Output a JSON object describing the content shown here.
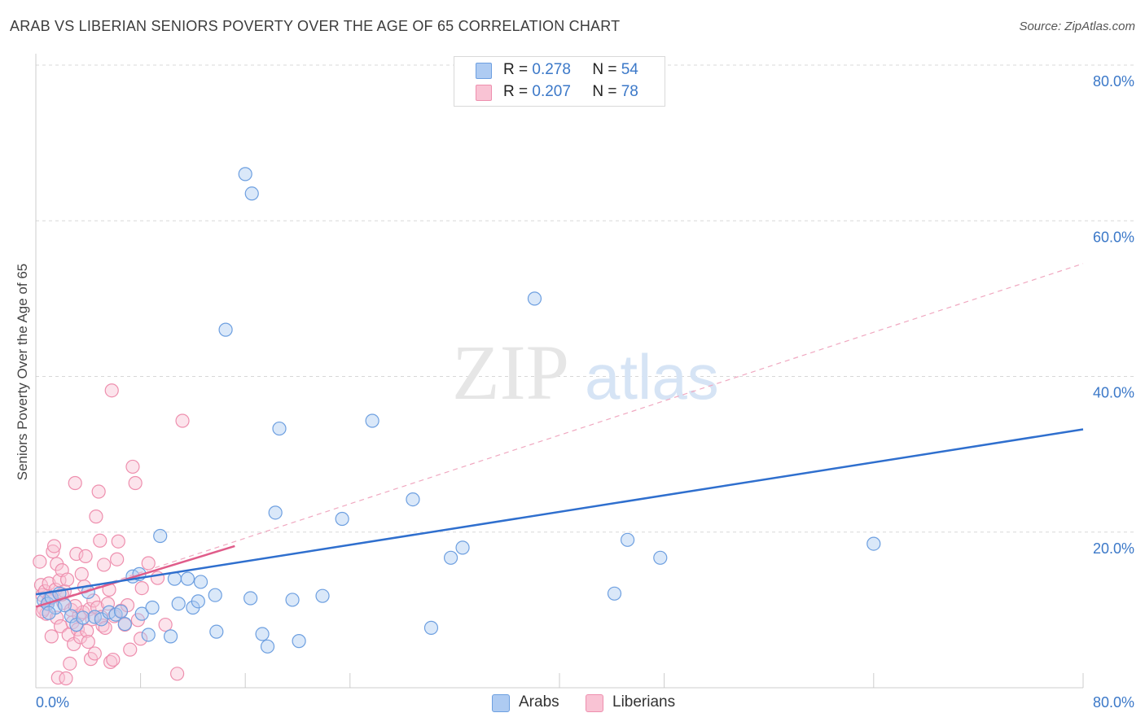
{
  "title": "ARAB VS LIBERIAN SENIORS POVERTY OVER THE AGE OF 65 CORRELATION CHART",
  "source": "Source: ZipAtlas.com",
  "watermark": {
    "zip": "ZIP",
    "atlas": "atlas"
  },
  "colors": {
    "arab_fill": "#aecbf2",
    "arab_stroke": "#6d9fe0",
    "arab_line": "#2f6fce",
    "liberian_fill": "#f9c3d4",
    "liberian_stroke": "#ee8fae",
    "liberian_line": "#e05c8a",
    "tick": "#3b78c8",
    "grid": "#d8d8d8"
  },
  "legend": {
    "rows": [
      {
        "r_label": "R =",
        "r_value": "0.278",
        "n_label": "N =",
        "n_value": "54",
        "series": "Arabs"
      },
      {
        "r_label": "R =",
        "r_value": "0.207",
        "n_label": "N =",
        "n_value": "78",
        "series": "Liberians"
      }
    ]
  },
  "bottom_legend": [
    "Arabs",
    "Liberians"
  ],
  "chart_data": {
    "type": "scatter",
    "xlabel": "",
    "ylabel": "Seniors Poverty Over the Age of 65",
    "xlim": [
      0,
      80
    ],
    "ylim": [
      0,
      80
    ],
    "x_tick_labels": [
      "0.0%",
      "80.0%"
    ],
    "y_tick_labels": [
      "20.0%",
      "40.0%",
      "60.0%",
      "80.0%"
    ],
    "y_ticks": [
      20,
      40,
      60,
      80
    ],
    "grid": true,
    "legend_position": "top-center",
    "series": [
      {
        "name": "Arabs",
        "trend": {
          "x": [
            0,
            80
          ],
          "y": [
            12.0,
            33.2
          ],
          "style": "solid"
        },
        "points": [
          [
            0.6,
            11.2
          ],
          [
            0.9,
            10.8
          ],
          [
            1.2,
            11.6
          ],
          [
            1.5,
            10.3
          ],
          [
            1.8,
            12.1
          ],
          [
            2.2,
            10.6
          ],
          [
            2.7,
            9.2
          ],
          [
            3.1,
            8.1
          ],
          [
            3.6,
            9.0
          ],
          [
            4.0,
            12.3
          ],
          [
            4.5,
            9.1
          ],
          [
            5.0,
            8.8
          ],
          [
            5.6,
            9.7
          ],
          [
            6.1,
            9.4
          ],
          [
            6.5,
            9.8
          ],
          [
            6.8,
            8.2
          ],
          [
            7.4,
            14.3
          ],
          [
            7.9,
            14.6
          ],
          [
            8.1,
            9.5
          ],
          [
            8.6,
            6.8
          ],
          [
            8.9,
            10.3
          ],
          [
            9.5,
            19.5
          ],
          [
            10.3,
            6.6
          ],
          [
            10.6,
            14.0
          ],
          [
            10.9,
            10.8
          ],
          [
            11.6,
            14.0
          ],
          [
            12.0,
            10.3
          ],
          [
            12.4,
            11.1
          ],
          [
            12.6,
            13.6
          ],
          [
            13.7,
            11.9
          ],
          [
            13.8,
            7.2
          ],
          [
            16.0,
            66.0
          ],
          [
            16.5,
            63.5
          ],
          [
            16.4,
            11.5
          ],
          [
            14.5,
            46.0
          ],
          [
            17.3,
            6.9
          ],
          [
            17.7,
            5.3
          ],
          [
            18.3,
            22.5
          ],
          [
            18.6,
            33.3
          ],
          [
            19.6,
            11.3
          ],
          [
            20.1,
            6.0
          ],
          [
            21.9,
            11.8
          ],
          [
            23.4,
            21.7
          ],
          [
            25.7,
            34.3
          ],
          [
            28.8,
            24.2
          ],
          [
            30.2,
            7.7
          ],
          [
            31.7,
            16.7
          ],
          [
            32.6,
            18.0
          ],
          [
            38.1,
            50.0
          ],
          [
            44.2,
            12.1
          ],
          [
            45.2,
            19.0
          ],
          [
            47.7,
            16.7
          ],
          [
            64.0,
            18.5
          ],
          [
            1.0,
            9.6
          ]
        ]
      },
      {
        "name": "Liberians",
        "trend_solid": {
          "x": [
            0,
            15.2
          ],
          "y": [
            10.4,
            18.2
          ],
          "style": "solid"
        },
        "trend_dashed": {
          "x": [
            0,
            80
          ],
          "y": [
            10.4,
            54.5
          ],
          "style": "dashed"
        },
        "points": [
          [
            0.3,
            16.2
          ],
          [
            0.4,
            13.2
          ],
          [
            0.5,
            11.9
          ],
          [
            0.6,
            10.1
          ],
          [
            0.7,
            12.4
          ],
          [
            0.8,
            9.5
          ],
          [
            0.9,
            10.8
          ],
          [
            1.0,
            13.4
          ],
          [
            1.1,
            11.5
          ],
          [
            1.2,
            6.6
          ],
          [
            1.3,
            17.5
          ],
          [
            1.4,
            18.2
          ],
          [
            1.5,
            12.6
          ],
          [
            1.6,
            15.9
          ],
          [
            1.6,
            9.0
          ],
          [
            1.7,
            1.3
          ],
          [
            1.8,
            13.8
          ],
          [
            1.9,
            7.9
          ],
          [
            2.0,
            15.1
          ],
          [
            2.1,
            10.9
          ],
          [
            2.2,
            12.4
          ],
          [
            2.3,
            1.2
          ],
          [
            2.4,
            13.9
          ],
          [
            2.5,
            6.8
          ],
          [
            2.6,
            3.1
          ],
          [
            2.7,
            10.0
          ],
          [
            2.8,
            8.4
          ],
          [
            2.9,
            5.6
          ],
          [
            3.0,
            26.3
          ],
          [
            3.1,
            17.2
          ],
          [
            3.2,
            7.5
          ],
          [
            3.3,
            9.3
          ],
          [
            3.4,
            6.5
          ],
          [
            3.5,
            14.6
          ],
          [
            3.6,
            9.7
          ],
          [
            3.7,
            13.0
          ],
          [
            3.8,
            16.9
          ],
          [
            3.9,
            7.3
          ],
          [
            4.0,
            5.9
          ],
          [
            4.1,
            10.1
          ],
          [
            4.2,
            3.7
          ],
          [
            4.3,
            8.8
          ],
          [
            4.4,
            11.2
          ],
          [
            4.5,
            4.4
          ],
          [
            4.6,
            22.0
          ],
          [
            4.7,
            10.3
          ],
          [
            4.8,
            25.2
          ],
          [
            4.9,
            18.9
          ],
          [
            5.0,
            9.1
          ],
          [
            5.1,
            8.0
          ],
          [
            5.2,
            15.8
          ],
          [
            5.3,
            7.7
          ],
          [
            5.5,
            10.8
          ],
          [
            5.6,
            12.6
          ],
          [
            5.7,
            3.3
          ],
          [
            5.8,
            38.2
          ],
          [
            5.9,
            3.6
          ],
          [
            6.0,
            9.2
          ],
          [
            6.2,
            16.5
          ],
          [
            6.3,
            18.8
          ],
          [
            6.5,
            9.9
          ],
          [
            6.8,
            8.1
          ],
          [
            7.0,
            10.6
          ],
          [
            7.2,
            4.9
          ],
          [
            7.4,
            28.4
          ],
          [
            7.6,
            26.3
          ],
          [
            7.8,
            8.7
          ],
          [
            8.0,
            6.3
          ],
          [
            8.1,
            12.8
          ],
          [
            8.6,
            16.0
          ],
          [
            9.3,
            14.1
          ],
          [
            9.9,
            8.1
          ],
          [
            10.8,
            1.8
          ],
          [
            11.2,
            34.3
          ],
          [
            0.5,
            9.8
          ],
          [
            1.0,
            11.3
          ],
          [
            2.0,
            12.0
          ],
          [
            3.0,
            10.5
          ]
        ]
      }
    ]
  }
}
